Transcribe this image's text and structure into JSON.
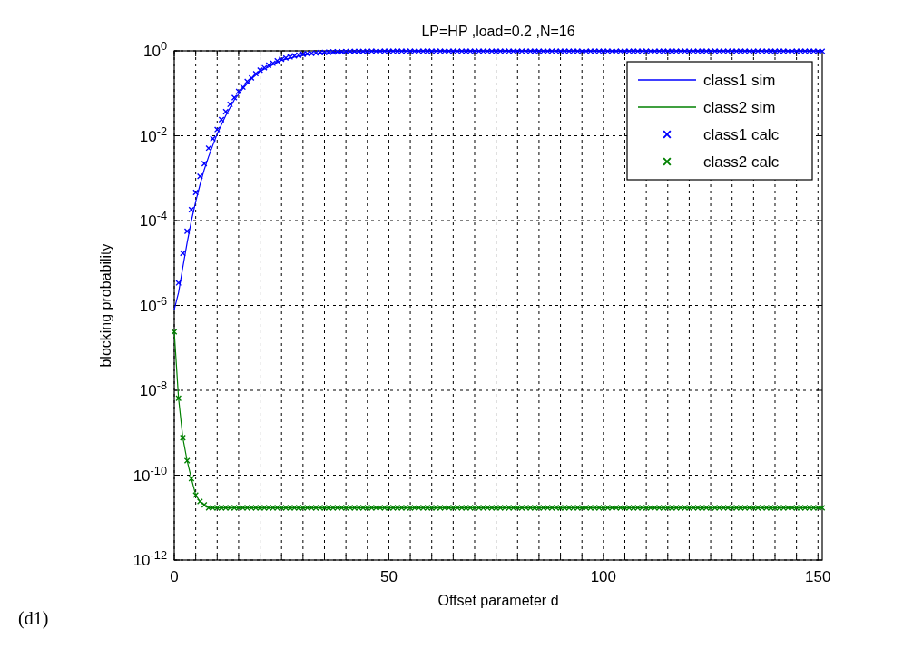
{
  "chart_data": {
    "type": "line",
    "title": "LP=HP ,load=0.2 ,N=16",
    "xlabel": "Offset parameter d",
    "ylabel": "blocking probability",
    "annotations": [
      "(d1)"
    ],
    "log": "y",
    "grid": true,
    "legend": "top right",
    "xlim": [
      0,
      151
    ],
    "xticks": [
      0,
      {
        "value": 5,
        "label": null
      },
      {
        "value": 10,
        "label": null
      },
      {
        "value": 15,
        "label": null
      },
      {
        "value": 20,
        "label": null
      },
      {
        "value": 25,
        "label": null
      },
      {
        "value": 30,
        "label": null
      },
      {
        "value": 35,
        "label": null
      },
      {
        "value": 40,
        "label": null
      },
      {
        "value": 45,
        "label": null
      },
      50,
      {
        "value": 55,
        "label": null
      },
      {
        "value": 60,
        "label": null
      },
      {
        "value": 65,
        "label": null
      },
      {
        "value": 70,
        "label": null
      },
      {
        "value": 75,
        "label": null
      },
      {
        "value": 80,
        "label": null
      },
      {
        "value": 85,
        "label": null
      },
      {
        "value": 90,
        "label": null
      },
      {
        "value": 95,
        "label": null
      },
      100,
      {
        "value": 105,
        "label": null
      },
      {
        "value": 110,
        "label": null
      },
      {
        "value": 115,
        "label": null
      },
      {
        "value": 120,
        "label": null
      },
      {
        "value": 125,
        "label": null
      },
      {
        "value": 130,
        "label": null
      },
      {
        "value": 135,
        "label": null
      },
      {
        "value": 140,
        "label": null
      },
      {
        "value": 145,
        "label": null
      },
      150
    ],
    "ylim": [
      1e-12,
      1
    ],
    "yticks": [
      {
        "value": 1e-12,
        "label": "10$^{-12}$"
      },
      {
        "value": 1e-10,
        "label": "10$^{-10}$"
      },
      {
        "value": 1e-08,
        "label": "10$^{-8}$"
      },
      {
        "value": 1e-06,
        "label": "10$^{-6}$"
      },
      {
        "value": 0.0001,
        "label": "10$^{-4}$"
      },
      {
        "value": 0.01,
        "label": "10$^{-2}$"
      },
      {
        "value": 1,
        "label": "10$^{0}$"
      }
    ],
    "series": [
      {
        "name": "class1 sim",
        "color": "#0000ff",
        "marker": "none",
        "line_style": "solid",
        "x": [
          0,
          1,
          2,
          3,
          4,
          5,
          6,
          7,
          8,
          9,
          10,
          12,
          14,
          16,
          18,
          20,
          25,
          30,
          35,
          40,
          50,
          151
        ],
        "values": [
          8e-07,
          2e-06,
          8e-06,
          3e-05,
          0.0001,
          0.00028,
          0.0007,
          0.0016,
          0.0032,
          0.006,
          0.011,
          0.03,
          0.07,
          0.13,
          0.22,
          0.33,
          0.6,
          0.8,
          0.9,
          0.95,
          0.98,
          0.98
        ]
      },
      {
        "name": "class2 sim",
        "color": "#008000",
        "marker": "none",
        "line_style": "solid",
        "x": [
          0,
          1,
          2,
          3,
          4,
          5,
          6,
          7,
          8,
          151
        ],
        "values": [
          2.4e-07,
          6.5e-09,
          7.6e-10,
          2.2e-10,
          8.3e-11,
          3.4e-11,
          2.4e-11,
          2e-11,
          1.7e-11,
          1.7e-11
        ]
      },
      {
        "name": "class1 calc",
        "type": "scatter",
        "color": "#0000ff",
        "marker": "cross",
        "x": [
          1,
          2,
          3,
          4,
          5,
          6,
          7,
          8,
          9,
          10,
          11,
          12,
          13,
          14,
          15,
          16,
          17,
          18,
          19,
          20,
          21,
          22,
          23,
          24,
          25,
          26,
          27,
          28,
          29,
          30,
          31,
          32,
          33,
          34,
          35,
          36,
          37,
          38,
          39,
          40,
          41,
          42,
          43,
          44,
          45,
          46,
          47,
          48,
          49,
          50,
          51,
          52,
          53,
          54,
          55,
          56,
          57,
          58,
          59,
          60,
          61,
          62,
          63,
          64,
          65,
          66,
          67,
          68,
          69,
          70,
          71,
          72,
          73,
          74,
          75,
          76,
          77,
          78,
          79,
          80,
          81,
          82,
          83,
          84,
          85,
          86,
          87,
          88,
          89,
          90,
          91,
          92,
          93,
          94,
          95,
          96,
          97,
          98,
          99,
          100,
          101,
          102,
          103,
          104,
          105,
          106,
          107,
          108,
          109,
          110,
          111,
          112,
          113,
          114,
          115,
          116,
          117,
          118,
          119,
          120,
          121,
          122,
          123,
          124,
          125,
          126,
          127,
          128,
          129,
          130,
          131,
          132,
          133,
          134,
          135,
          136,
          137,
          138,
          139,
          140,
          141,
          142,
          143,
          144,
          145,
          146,
          147,
          148,
          149,
          150,
          151
        ],
        "values": [
          3.4e-06,
          1.7e-05,
          5.6e-05,
          0.00018,
          0.00046,
          0.0011,
          0.0022,
          0.0051,
          0.0085,
          0.014,
          0.024,
          0.037,
          0.055,
          0.079,
          0.11,
          0.14,
          0.19,
          0.23,
          0.29,
          0.35,
          0.4,
          0.46,
          0.51,
          0.58,
          0.63,
          0.68,
          0.72,
          0.76,
          0.79,
          0.83,
          0.85,
          0.87,
          0.89,
          0.91,
          0.92,
          0.93,
          0.94,
          0.95,
          0.95,
          0.96,
          0.97,
          0.97,
          0.97,
          0.97,
          0.97,
          0.98,
          0.98,
          0.98,
          0.98,
          0.98,
          0.98,
          0.98,
          0.98,
          0.98,
          0.98,
          0.98,
          0.98,
          0.98,
          0.98,
          0.98,
          0.98,
          0.98,
          0.98,
          0.98,
          0.98,
          0.98,
          0.98,
          0.98,
          0.98,
          0.98,
          0.98,
          0.98,
          0.98,
          0.98,
          0.98,
          0.98,
          0.98,
          0.98,
          0.98,
          0.98,
          0.98,
          0.98,
          0.98,
          0.98,
          0.98,
          0.98,
          0.98,
          0.98,
          0.98,
          0.98,
          0.98,
          0.98,
          0.98,
          0.98,
          0.98,
          0.98,
          0.98,
          0.98,
          0.98,
          0.98,
          0.98,
          0.98,
          0.98,
          0.98,
          0.98,
          0.98,
          0.98,
          0.98,
          0.98,
          0.98,
          0.98,
          0.98,
          0.98,
          0.98,
          0.98,
          0.98,
          0.98,
          0.98,
          0.98,
          0.98,
          0.98,
          0.98,
          0.98,
          0.98,
          0.98,
          0.98,
          0.98,
          0.98,
          0.98,
          0.98,
          0.98,
          0.98,
          0.98,
          0.98,
          0.98,
          0.98,
          0.98,
          0.98,
          0.98,
          0.98,
          0.98,
          0.98,
          0.98,
          0.98,
          0.98,
          0.98,
          0.98,
          0.98,
          0.98,
          0.98,
          0.98
        ]
      },
      {
        "name": "class2 calc",
        "type": "scatter",
        "color": "#008000",
        "marker": "cross",
        "x": [
          0,
          1,
          2,
          3,
          4,
          5,
          6,
          7,
          8,
          9,
          10,
          11,
          12,
          13,
          14,
          15,
          16,
          17,
          18,
          19,
          20,
          21,
          22,
          23,
          24,
          25,
          26,
          27,
          28,
          29,
          30,
          31,
          32,
          33,
          34,
          35,
          36,
          37,
          38,
          39,
          40,
          41,
          42,
          43,
          44,
          45,
          46,
          47,
          48,
          49,
          50,
          51,
          52,
          53,
          54,
          55,
          56,
          57,
          58,
          59,
          60,
          61,
          62,
          63,
          64,
          65,
          66,
          67,
          68,
          69,
          70,
          71,
          72,
          73,
          74,
          75,
          76,
          77,
          78,
          79,
          80,
          81,
          82,
          83,
          84,
          85,
          86,
          87,
          88,
          89,
          90,
          91,
          92,
          93,
          94,
          95,
          96,
          97,
          98,
          99,
          100,
          101,
          102,
          103,
          104,
          105,
          106,
          107,
          108,
          109,
          110,
          111,
          112,
          113,
          114,
          115,
          116,
          117,
          118,
          119,
          120,
          121,
          122,
          123,
          124,
          125,
          126,
          127,
          128,
          129,
          130,
          131,
          132,
          133,
          134,
          135,
          136,
          137,
          138,
          139,
          140,
          141,
          142,
          143,
          144,
          145,
          146,
          147,
          148,
          149,
          150,
          151
        ],
        "values": [
          2.4e-07,
          6.5e-09,
          7.6e-10,
          2.2e-10,
          8.3e-11,
          3.4e-11,
          2.4e-11,
          2e-11,
          1.7e-11,
          1.7e-11,
          1.7e-11,
          1.7e-11,
          1.7e-11,
          1.7e-11,
          1.7e-11,
          1.7e-11,
          1.7e-11,
          1.7e-11,
          1.7e-11,
          1.7e-11,
          1.7e-11,
          1.7e-11,
          1.7e-11,
          1.7e-11,
          1.7e-11,
          1.7e-11,
          1.7e-11,
          1.7e-11,
          1.7e-11,
          1.7e-11,
          1.7e-11,
          1.7e-11,
          1.7e-11,
          1.7e-11,
          1.7e-11,
          1.7e-11,
          1.7e-11,
          1.7e-11,
          1.7e-11,
          1.7e-11,
          1.7e-11,
          1.7e-11,
          1.7e-11,
          1.7e-11,
          1.7e-11,
          1.7e-11,
          1.7e-11,
          1.7e-11,
          1.7e-11,
          1.7e-11,
          1.7e-11,
          1.7e-11,
          1.7e-11,
          1.7e-11,
          1.7e-11,
          1.7e-11,
          1.7e-11,
          1.7e-11,
          1.7e-11,
          1.7e-11,
          1.7e-11,
          1.7e-11,
          1.7e-11,
          1.7e-11,
          1.7e-11,
          1.7e-11,
          1.7e-11,
          1.7e-11,
          1.7e-11,
          1.7e-11,
          1.7e-11,
          1.7e-11,
          1.7e-11,
          1.7e-11,
          1.7e-11,
          1.7e-11,
          1.7e-11,
          1.7e-11,
          1.7e-11,
          1.7e-11,
          1.7e-11,
          1.7e-11,
          1.7e-11,
          1.7e-11,
          1.7e-11,
          1.7e-11,
          1.7e-11,
          1.7e-11,
          1.7e-11,
          1.7e-11,
          1.7e-11,
          1.7e-11,
          1.7e-11,
          1.7e-11,
          1.7e-11,
          1.7e-11,
          1.7e-11,
          1.7e-11,
          1.7e-11,
          1.7e-11,
          1.7e-11,
          1.7e-11,
          1.7e-11,
          1.7e-11,
          1.7e-11,
          1.7e-11,
          1.7e-11,
          1.7e-11,
          1.7e-11,
          1.7e-11,
          1.7e-11,
          1.7e-11,
          1.7e-11,
          1.7e-11,
          1.7e-11,
          1.7e-11,
          1.7e-11,
          1.7e-11,
          1.7e-11,
          1.7e-11,
          1.7e-11,
          1.7e-11,
          1.7e-11,
          1.7e-11,
          1.7e-11,
          1.7e-11,
          1.7e-11,
          1.7e-11,
          1.7e-11,
          1.7e-11,
          1.7e-11,
          1.7e-11,
          1.7e-11,
          1.7e-11,
          1.7e-11,
          1.7e-11,
          1.7e-11,
          1.7e-11,
          1.7e-11,
          1.7e-11,
          1.7e-11,
          1.7e-11,
          1.7e-11,
          1.7e-11,
          1.7e-11,
          1.7e-11,
          1.7e-11,
          1.7e-11,
          1.7e-11,
          1.7e-11,
          1.7e-11,
          1.7e-11
        ]
      }
    ]
  }
}
